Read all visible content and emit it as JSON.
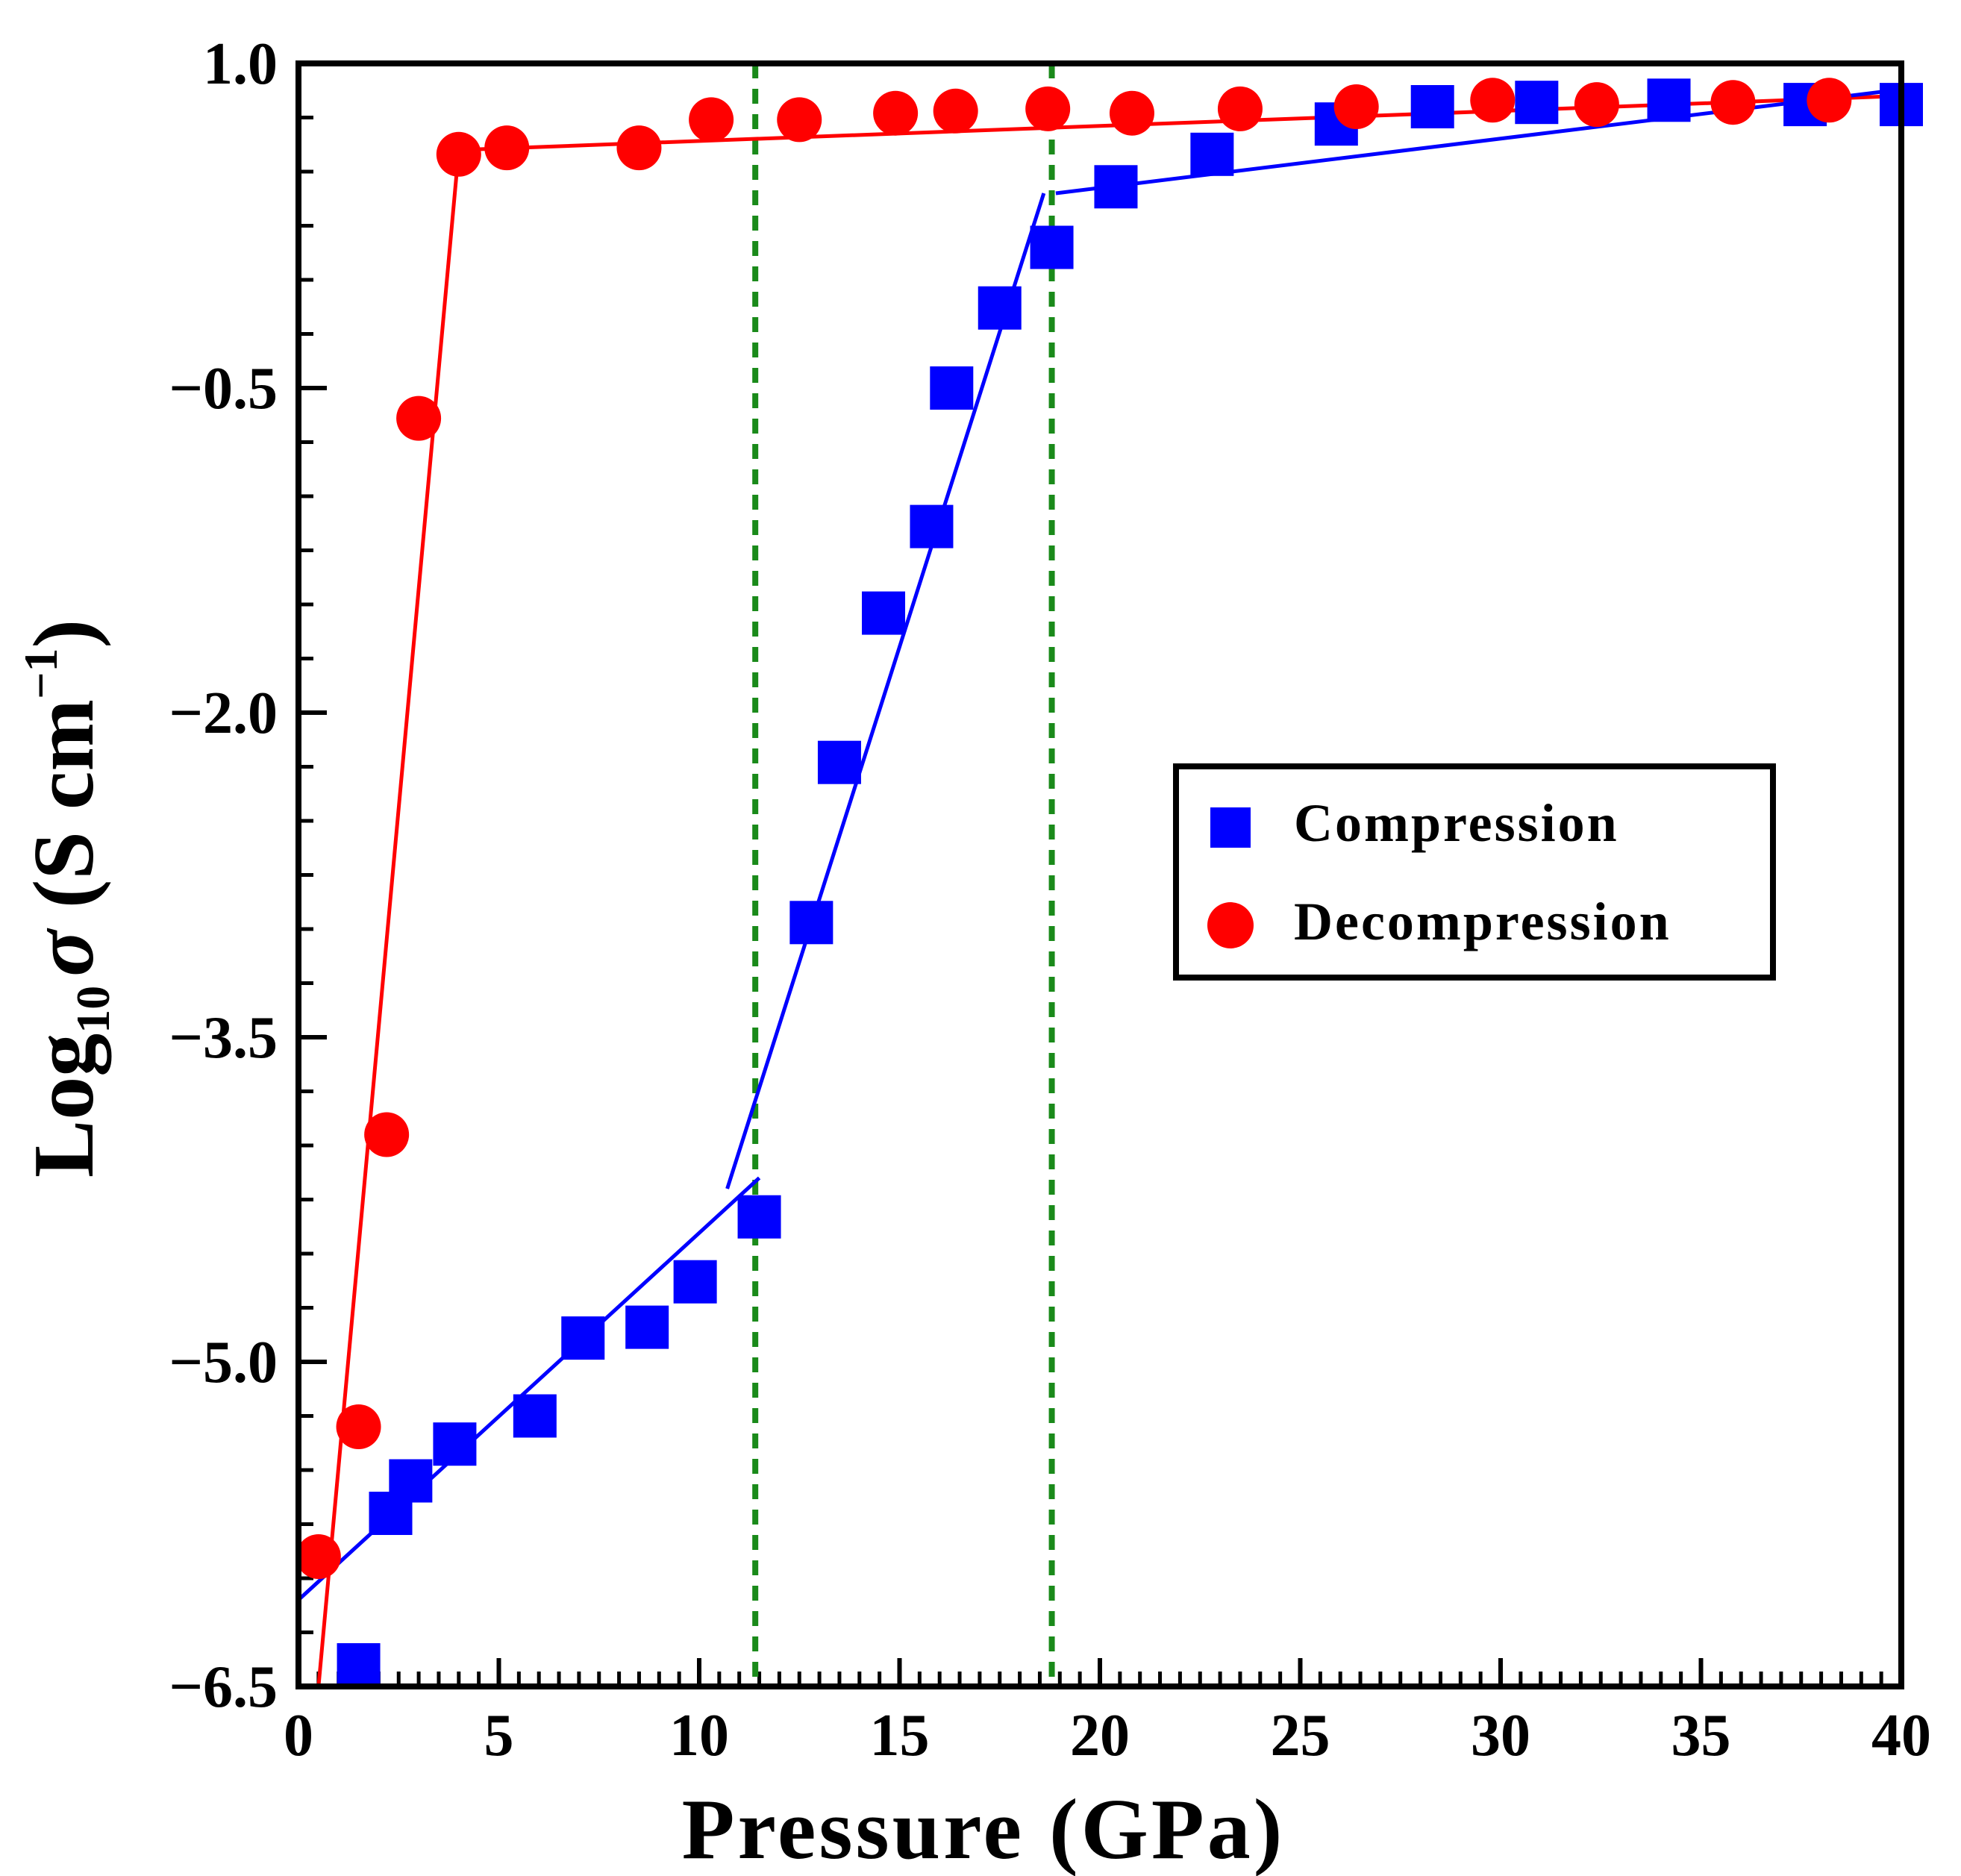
{
  "chart_data": {
    "type": "scatter",
    "xlabel": "Pressure (GPa)",
    "ylabel": {
      "prefix": "Log",
      "subscript": "10",
      "symbol": "σ",
      "unit_open": " (S cm",
      "superscript": "−1",
      "unit_close": ")"
    },
    "xlim": [
      0,
      40
    ],
    "ylim": [
      -6.5,
      1.0
    ],
    "xticks": [
      0,
      5,
      10,
      15,
      20,
      25,
      30,
      35,
      40
    ],
    "xtick_labels": [
      "0",
      "5",
      "10",
      "15",
      "20",
      "25",
      "30",
      "35",
      "40"
    ],
    "yticks": [
      1.0,
      -0.5,
      -2.0,
      -3.5,
      -5.0,
      -6.5
    ],
    "ytick_labels": [
      "1.0",
      "−0.5",
      "−2.0",
      "−3.5",
      "−5.0",
      "−6.5"
    ],
    "grid": false,
    "legend_position": "middle-right",
    "reference_lines": [
      {
        "axis": "x",
        "value": 11.4,
        "style": "dotted",
        "color": "#1a8a1a"
      },
      {
        "axis": "x",
        "value": 18.8,
        "style": "dotted",
        "color": "#1a8a1a"
      }
    ],
    "series": [
      {
        "name": "Compression",
        "marker": "square",
        "color": "#0000ff",
        "x": [
          1.5,
          2.3,
          2.8,
          3.9,
          5.9,
          7.1,
          8.7,
          9.9,
          11.5,
          12.8,
          13.5,
          14.6,
          15.8,
          16.3,
          17.5,
          18.8,
          20.4,
          22.8,
          25.9,
          28.3,
          30.9,
          34.2,
          37.6,
          40.0
        ],
        "y": [
          -6.4,
          -5.7,
          -5.55,
          -5.38,
          -5.25,
          -4.89,
          -4.84,
          -4.63,
          -4.33,
          -2.97,
          -2.23,
          -1.54,
          -1.14,
          -0.5,
          -0.13,
          0.15,
          0.43,
          0.58,
          0.72,
          0.8,
          0.82,
          0.83,
          0.81,
          0.81
        ]
      },
      {
        "name": "Decompression",
        "marker": "circle",
        "color": "#ff0000",
        "x": [
          0.5,
          1.5,
          2.2,
          3.0,
          4.0,
          5.2,
          8.5,
          10.3,
          12.5,
          14.9,
          16.4,
          18.7,
          20.8,
          23.5,
          26.4,
          29.8,
          32.4,
          35.8,
          38.2
        ],
        "y": [
          -5.9,
          -5.3,
          -3.95,
          -0.64,
          0.58,
          0.61,
          0.61,
          0.74,
          0.74,
          0.77,
          0.78,
          0.79,
          0.77,
          0.79,
          0.8,
          0.83,
          0.81,
          0.82,
          0.83
        ]
      }
    ],
    "fit_lines": [
      {
        "series": "Decompression",
        "color": "#ff0000",
        "points": [
          [
            0.5,
            -6.5
          ],
          [
            4.0,
            0.6
          ]
        ]
      },
      {
        "series": "Decompression",
        "color": "#ff0000",
        "points": [
          [
            4.0,
            0.6
          ],
          [
            40.0,
            0.85
          ]
        ]
      },
      {
        "series": "Compression",
        "color": "#0000ff",
        "points": [
          [
            0.0,
            -6.1
          ],
          [
            11.5,
            -4.15
          ]
        ]
      },
      {
        "series": "Compression",
        "color": "#0000ff",
        "points": [
          [
            10.7,
            -4.2
          ],
          [
            18.6,
            0.4
          ]
        ]
      },
      {
        "series": "Compression",
        "color": "#0000ff",
        "points": [
          [
            18.9,
            0.4
          ],
          [
            40.0,
            0.88
          ]
        ]
      }
    ]
  }
}
